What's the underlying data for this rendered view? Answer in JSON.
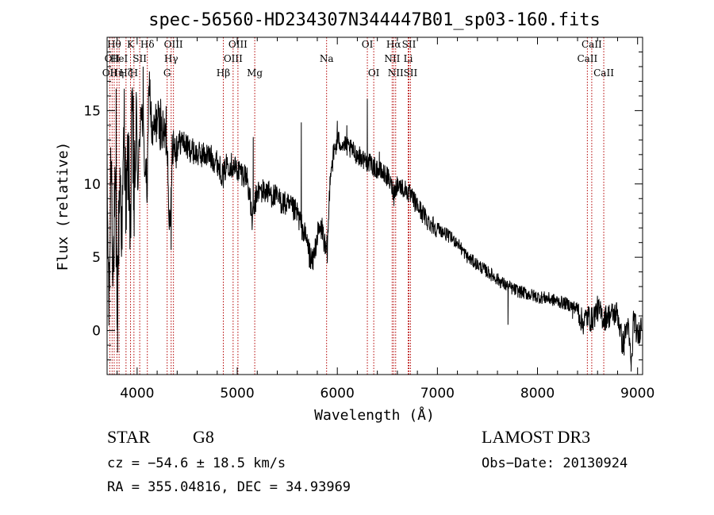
{
  "chart_data": {
    "type": "line",
    "title": "spec-56560-HD234307N344447B01_sp03-160.fits",
    "xlabel": "Wavelength (Å)",
    "ylabel": "Flux (relative)",
    "xlim": [
      3700,
      9050
    ],
    "ylim": [
      -3,
      20
    ],
    "xticks": [
      4000,
      5000,
      6000,
      7000,
      8000,
      9000
    ],
    "xtick_labels": [
      "4000",
      "5000",
      "6000",
      "7000",
      "8000",
      "9000"
    ],
    "yticks": [
      0,
      5,
      10,
      15
    ],
    "ytick_labels": [
      "0",
      "5",
      "10",
      "15"
    ],
    "grid": false,
    "anchors": [
      [
        3700,
        9.5
      ],
      [
        3720,
        1.0
      ],
      [
        3740,
        13.0
      ],
      [
        3760,
        4.0
      ],
      [
        3780,
        9.0
      ],
      [
        3800,
        2.0
      ],
      [
        3830,
        11.0
      ],
      [
        3850,
        6.0
      ],
      [
        3870,
        14.5
      ],
      [
        3890,
        8.0
      ],
      [
        3910,
        12.0
      ],
      [
        3935,
        7.0
      ],
      [
        3950,
        15.5
      ],
      [
        3968,
        7.5
      ],
      [
        3990,
        14.0
      ],
      [
        4010,
        10.0
      ],
      [
        4040,
        16.0
      ],
      [
        4070,
        12.0
      ],
      [
        4102,
        9.5
      ],
      [
        4120,
        17.5
      ],
      [
        4150,
        13.0
      ],
      [
        4200,
        14.5
      ],
      [
        4250,
        13.5
      ],
      [
        4300,
        13.0
      ],
      [
        4330,
        6.0
      ],
      [
        4350,
        13.0
      ],
      [
        4380,
        12.5
      ],
      [
        4450,
        13.0
      ],
      [
        4500,
        12.5
      ],
      [
        4600,
        12.0
      ],
      [
        4700,
        12.0
      ],
      [
        4800,
        11.5
      ],
      [
        4861,
        10.5
      ],
      [
        4900,
        11.5
      ],
      [
        5000,
        11.0
      ],
      [
        5100,
        10.5
      ],
      [
        5150,
        7.5
      ],
      [
        5200,
        9.5
      ],
      [
        5300,
        9.5
      ],
      [
        5400,
        9.0
      ],
      [
        5500,
        8.5
      ],
      [
        5600,
        8.0
      ],
      [
        5700,
        6.0
      ],
      [
        5750,
        4.5
      ],
      [
        5800,
        6.5
      ],
      [
        5850,
        7.0
      ],
      [
        5890,
        5.0
      ],
      [
        5910,
        7.0
      ],
      [
        5930,
        11.0
      ],
      [
        6000,
        13.0
      ],
      [
        6100,
        12.5
      ],
      [
        6200,
        12.0
      ],
      [
        6300,
        11.5
      ],
      [
        6400,
        11.0
      ],
      [
        6500,
        10.5
      ],
      [
        6563,
        9.5
      ],
      [
        6600,
        10.0
      ],
      [
        6700,
        9.5
      ],
      [
        6800,
        8.5
      ],
      [
        6900,
        7.5
      ],
      [
        7000,
        7.0
      ],
      [
        7100,
        6.5
      ],
      [
        7200,
        6.0
      ],
      [
        7300,
        5.0
      ],
      [
        7400,
        4.5
      ],
      [
        7500,
        4.0
      ],
      [
        7600,
        3.5
      ],
      [
        7700,
        3.0
      ],
      [
        7800,
        2.7
      ],
      [
        7900,
        2.5
      ],
      [
        8000,
        2.3
      ],
      [
        8100,
        2.2
      ],
      [
        8200,
        2.0
      ],
      [
        8300,
        1.8
      ],
      [
        8400,
        1.5
      ],
      [
        8450,
        0.5
      ],
      [
        8498,
        1.0
      ],
      [
        8542,
        0.7
      ],
      [
        8600,
        1.5
      ],
      [
        8662,
        0.8
      ],
      [
        8700,
        1.0
      ],
      [
        8800,
        1.2
      ],
      [
        8850,
        -1.0
      ],
      [
        8900,
        0.5
      ],
      [
        8940,
        -2.5
      ],
      [
        8960,
        1.0
      ],
      [
        9000,
        -0.5
      ],
      [
        9040,
        0.5
      ]
    ],
    "spikes": [
      [
        3790,
        16.5
      ],
      [
        3805,
        -1.5
      ],
      [
        3962,
        16.0
      ],
      [
        4060,
        18.0
      ],
      [
        4235,
        15.8
      ],
      [
        4290,
        15.3
      ],
      [
        4340,
        5.5
      ],
      [
        5160,
        13.2
      ],
      [
        5640,
        14.2
      ],
      [
        5720,
        4.3
      ],
      [
        5900,
        4.6
      ],
      [
        6000,
        14.3
      ],
      [
        6095,
        14.0
      ],
      [
        6300,
        15.8
      ],
      [
        6420,
        12.2
      ],
      [
        6565,
        8.5
      ],
      [
        7705,
        0.4
      ],
      [
        8350,
        0.8
      ],
      [
        8540,
        0.2
      ],
      [
        8865,
        -1.7
      ],
      [
        8935,
        -2.8
      ]
    ],
    "lines": [
      {
        "wave": 3727,
        "label": "OII",
        "row": 2
      },
      {
        "wave": 3750,
        "label": "OII",
        "row": 1
      },
      {
        "wave": 3771,
        "label": "Hθ",
        "row": 0
      },
      {
        "wave": 3798,
        "label": "Hη",
        "row": 2
      },
      {
        "wave": 3820,
        "label": "HeI",
        "row": 1
      },
      {
        "wave": 3889,
        "label": "Hζ",
        "row": 2
      },
      {
        "wave": 3934,
        "label": "K",
        "row": 0
      },
      {
        "wave": 3968,
        "label": "H",
        "row": 2
      },
      {
        "wave": 4026,
        "label": "SII",
        "row": 1
      },
      {
        "wave": 4102,
        "label": "Hδ",
        "row": 0
      },
      {
        "wave": 4300,
        "label": "G",
        "row": 2
      },
      {
        "wave": 4340,
        "label": "Hγ",
        "row": 1
      },
      {
        "wave": 4363,
        "label": "OIII",
        "row": 0
      },
      {
        "wave": 4861,
        "label": "Hβ",
        "row": 2
      },
      {
        "wave": 4959,
        "label": "OIII",
        "row": 1
      },
      {
        "wave": 5007,
        "label": "OIII",
        "row": 0
      },
      {
        "wave": 5175,
        "label": "Mg",
        "row": 2
      },
      {
        "wave": 5893,
        "label": "Na",
        "row": 1
      },
      {
        "wave": 6300,
        "label": "OI",
        "row": 0
      },
      {
        "wave": 6364,
        "label": "OI",
        "row": 2
      },
      {
        "wave": 6548,
        "label": "NII",
        "row": 1
      },
      {
        "wave": 6563,
        "label": "Hα",
        "row": 0
      },
      {
        "wave": 6583,
        "label": "NII",
        "row": 2
      },
      {
        "wave": 6708,
        "label": "Li",
        "row": 1
      },
      {
        "wave": 6716,
        "label": "SII",
        "row": 0
      },
      {
        "wave": 6731,
        "label": "SII",
        "row": 2
      },
      {
        "wave": 8498,
        "label": "CaII",
        "row": 1
      },
      {
        "wave": 8542,
        "label": "CaII",
        "row": 0
      },
      {
        "wave": 8662,
        "label": "CaII",
        "row": 2
      }
    ],
    "line_color": "#b40000"
  },
  "info": {
    "object_class": "STAR",
    "subclass": "G8",
    "survey": "LAMOST DR3",
    "cz": "cz = −54.6 ± 18.5 km/s",
    "obs_date": "Obs−Date: 20130924",
    "coords": "RA = 355.04816, DEC =  34.93969"
  }
}
